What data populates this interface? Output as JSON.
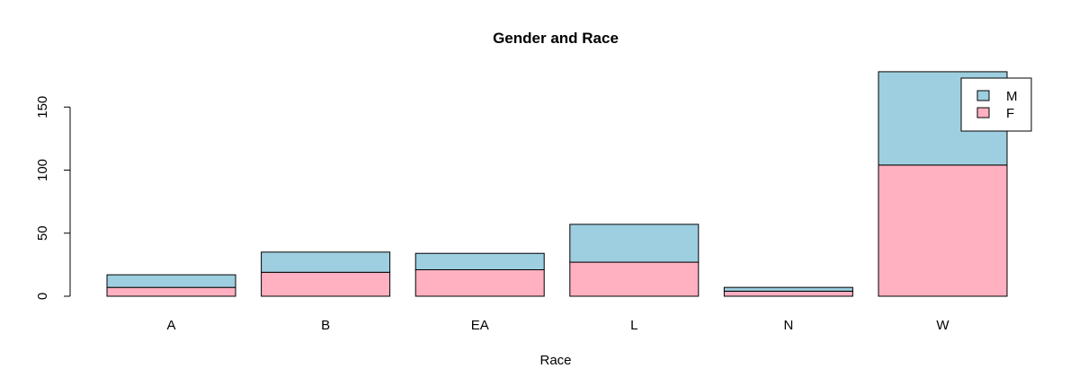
{
  "chart_data": {
    "type": "bar",
    "stacked": true,
    "title": "Gender and Race",
    "xlabel": "Race",
    "ylabel": "",
    "categories": [
      "A",
      "B",
      "EA",
      "L",
      "N",
      "W"
    ],
    "series": [
      {
        "name": "F",
        "color": "#FFB0C1",
        "values": [
          7,
          19,
          21,
          27,
          4,
          104
        ]
      },
      {
        "name": "M",
        "color": "#9ECFE0",
        "values": [
          10,
          16,
          13,
          30,
          3,
          74
        ]
      }
    ],
    "y_ticks": [
      "0",
      "50",
      "100",
      "150"
    ],
    "ylim": [
      0,
      178
    ],
    "legend": {
      "position": "top-right",
      "entries": [
        "M",
        "F"
      ]
    },
    "grid": false
  }
}
